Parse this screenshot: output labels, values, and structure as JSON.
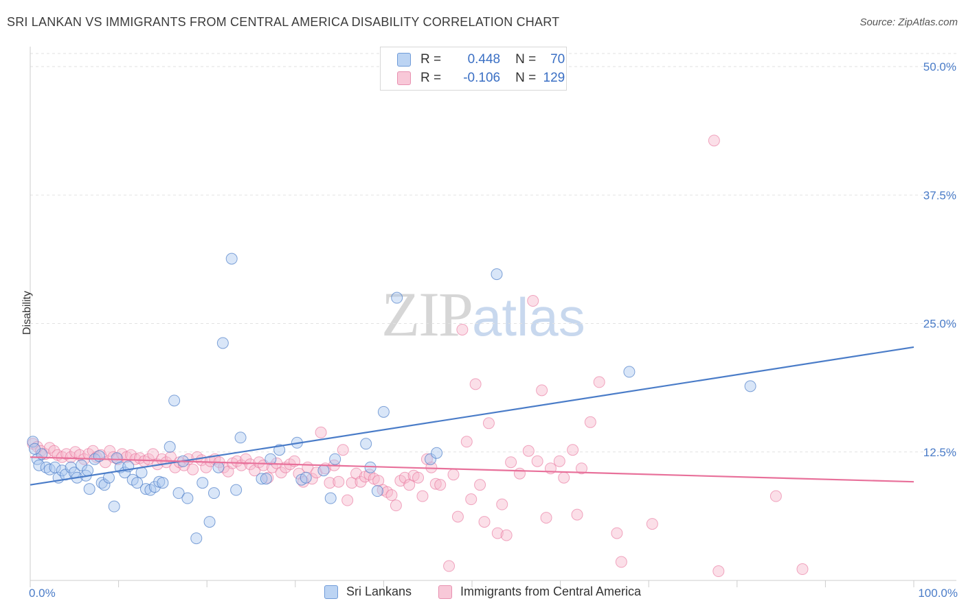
{
  "title": "SRI LANKAN VS IMMIGRANTS FROM CENTRAL AMERICA DISABILITY CORRELATION CHART",
  "source": "Source: ZipAtlas.com",
  "watermark": {
    "zip": "ZIP",
    "atlas": "atlas"
  },
  "stats": {
    "r_label": "R =",
    "n_label": "N =",
    "series1": {
      "r": "0.448",
      "n": "70"
    },
    "series2": {
      "r": "-0.106",
      "n": "129"
    }
  },
  "colors": {
    "blue": "#4a7cc8",
    "blue_fill": "#aac8f0",
    "pink": "#e8709a",
    "pink_fill": "#f6b8cc",
    "grid": "#e2e2e2",
    "axis": "#cccccc"
  },
  "chart_data": {
    "type": "scatter",
    "ylabel": "Disability",
    "xlim": [
      0,
      100
    ],
    "ylim": [
      0,
      50
    ],
    "x_tick_labels": [
      "0.0%",
      "100.0%"
    ],
    "y_ticks": [
      {
        "value": 12.5,
        "label": "12.5%"
      },
      {
        "value": 25.0,
        "label": "25.0%"
      },
      {
        "value": 37.5,
        "label": "37.5%"
      },
      {
        "value": 50.0,
        "label": "50.0%"
      }
    ],
    "legend": [
      "Sri Lankans",
      "Immigrants from Central America"
    ],
    "series": [
      {
        "name": "Sri Lankans",
        "color": "#4a7cc8",
        "trend": {
          "x0": 0,
          "y0": 9.3,
          "x1": 100,
          "y1": 22.7
        },
        "points": [
          [
            0.3,
            13.5
          ],
          [
            0.8,
            11.8
          ],
          [
            1.0,
            11.2
          ],
          [
            1.3,
            12.3
          ],
          [
            1.8,
            11.0
          ],
          [
            2.2,
            10.8
          ],
          [
            2.8,
            11.0
          ],
          [
            3.2,
            10.0
          ],
          [
            3.6,
            10.7
          ],
          [
            4.0,
            10.3
          ],
          [
            4.6,
            11.0
          ],
          [
            5.0,
            10.5
          ],
          [
            5.3,
            10.0
          ],
          [
            5.8,
            11.2
          ],
          [
            6.3,
            10.2
          ],
          [
            6.5,
            10.7
          ],
          [
            6.7,
            8.9
          ],
          [
            7.3,
            11.8
          ],
          [
            7.8,
            12.1
          ],
          [
            8.1,
            9.5
          ],
          [
            8.4,
            9.3
          ],
          [
            8.9,
            10.0
          ],
          [
            9.5,
            7.2
          ],
          [
            9.8,
            11.9
          ],
          [
            10.2,
            11.0
          ],
          [
            10.7,
            10.5
          ],
          [
            11.1,
            11.1
          ],
          [
            11.6,
            9.8
          ],
          [
            12.1,
            9.5
          ],
          [
            12.6,
            10.5
          ],
          [
            13.1,
            8.9
          ],
          [
            13.6,
            8.8
          ],
          [
            14.1,
            9.1
          ],
          [
            14.6,
            9.6
          ],
          [
            15.0,
            9.5
          ],
          [
            15.8,
            13.0
          ],
          [
            16.3,
            17.5
          ],
          [
            16.8,
            8.5
          ],
          [
            17.3,
            11.6
          ],
          [
            17.8,
            8.0
          ],
          [
            18.8,
            4.1
          ],
          [
            19.5,
            9.5
          ],
          [
            20.3,
            5.7
          ],
          [
            20.8,
            8.5
          ],
          [
            21.3,
            11.0
          ],
          [
            21.8,
            23.1
          ],
          [
            22.8,
            31.3
          ],
          [
            23.3,
            8.8
          ],
          [
            23.8,
            13.9
          ],
          [
            26.2,
            9.9
          ],
          [
            26.7,
            9.9
          ],
          [
            27.2,
            11.8
          ],
          [
            28.2,
            12.7
          ],
          [
            30.2,
            13.4
          ],
          [
            30.7,
            9.8
          ],
          [
            31.2,
            10.0
          ],
          [
            33.2,
            10.7
          ],
          [
            34.0,
            8.0
          ],
          [
            34.5,
            11.8
          ],
          [
            38.0,
            13.3
          ],
          [
            38.5,
            11.0
          ],
          [
            39.3,
            8.7
          ],
          [
            40.0,
            16.4
          ],
          [
            41.5,
            27.5
          ],
          [
            45.3,
            11.8
          ],
          [
            46.0,
            12.4
          ],
          [
            52.8,
            29.8
          ],
          [
            67.8,
            20.3
          ],
          [
            81.5,
            18.9
          ],
          [
            0.5,
            12.8
          ]
        ]
      },
      {
        "name": "Immigrants from Central America",
        "color": "#e8709a",
        "trend": {
          "x0": 0,
          "y0": 12.0,
          "x1": 100,
          "y1": 9.6
        },
        "points": [
          [
            0.3,
            13.3
          ],
          [
            0.8,
            13.0
          ],
          [
            1.2,
            12.6
          ],
          [
            1.7,
            12.3
          ],
          [
            2.2,
            12.9
          ],
          [
            2.7,
            12.6
          ],
          [
            3.1,
            12.2
          ],
          [
            3.6,
            12.0
          ],
          [
            4.1,
            12.3
          ],
          [
            4.6,
            12.0
          ],
          [
            5.1,
            12.5
          ],
          [
            5.6,
            12.2
          ],
          [
            6.1,
            11.8
          ],
          [
            6.6,
            12.3
          ],
          [
            7.1,
            12.6
          ],
          [
            7.5,
            12.0
          ],
          [
            8.0,
            12.2
          ],
          [
            8.5,
            11.5
          ],
          [
            9.0,
            12.6
          ],
          [
            9.4,
            12.0
          ],
          [
            9.9,
            11.8
          ],
          [
            10.4,
            12.3
          ],
          [
            10.9,
            12.0
          ],
          [
            11.4,
            12.2
          ],
          [
            11.9,
            11.8
          ],
          [
            12.4,
            11.9
          ],
          [
            12.9,
            11.6
          ],
          [
            13.4,
            11.8
          ],
          [
            13.9,
            12.3
          ],
          [
            14.4,
            11.3
          ],
          [
            14.9,
            11.8
          ],
          [
            15.4,
            11.5
          ],
          [
            15.9,
            12.0
          ],
          [
            16.4,
            11.0
          ],
          [
            16.9,
            11.5
          ],
          [
            17.4,
            11.2
          ],
          [
            17.9,
            11.8
          ],
          [
            18.4,
            10.8
          ],
          [
            18.9,
            12.0
          ],
          [
            19.4,
            11.7
          ],
          [
            19.9,
            11.0
          ],
          [
            20.4,
            11.6
          ],
          [
            20.9,
            11.8
          ],
          [
            21.4,
            11.5
          ],
          [
            21.9,
            11.0
          ],
          [
            22.4,
            10.6
          ],
          [
            22.9,
            11.4
          ],
          [
            23.4,
            11.6
          ],
          [
            23.9,
            11.2
          ],
          [
            24.4,
            11.8
          ],
          [
            24.9,
            11.3
          ],
          [
            25.4,
            10.7
          ],
          [
            25.9,
            11.5
          ],
          [
            26.4,
            11.2
          ],
          [
            26.9,
            10.0
          ],
          [
            27.4,
            11.0
          ],
          [
            27.9,
            11.4
          ],
          [
            28.4,
            10.5
          ],
          [
            28.9,
            11.0
          ],
          [
            29.4,
            11.3
          ],
          [
            29.9,
            11.6
          ],
          [
            30.4,
            10.4
          ],
          [
            30.9,
            9.6
          ],
          [
            31.4,
            11.0
          ],
          [
            31.9,
            9.9
          ],
          [
            32.4,
            10.5
          ],
          [
            32.9,
            14.4
          ],
          [
            33.4,
            10.9
          ],
          [
            33.9,
            9.5
          ],
          [
            34.4,
            11.2
          ],
          [
            34.9,
            9.6
          ],
          [
            35.4,
            12.7
          ],
          [
            35.9,
            7.8
          ],
          [
            36.4,
            9.5
          ],
          [
            36.9,
            10.4
          ],
          [
            37.4,
            9.6
          ],
          [
            37.9,
            10.1
          ],
          [
            38.4,
            10.3
          ],
          [
            38.9,
            9.9
          ],
          [
            39.4,
            9.7
          ],
          [
            39.9,
            8.8
          ],
          [
            40.4,
            8.6
          ],
          [
            40.9,
            8.3
          ],
          [
            41.4,
            7.3
          ],
          [
            41.9,
            9.7
          ],
          [
            42.4,
            10.0
          ],
          [
            42.9,
            9.3
          ],
          [
            43.4,
            10.2
          ],
          [
            43.9,
            10.0
          ],
          [
            44.4,
            8.2
          ],
          [
            44.9,
            11.8
          ],
          [
            45.4,
            11.0
          ],
          [
            45.9,
            9.4
          ],
          [
            46.4,
            9.3
          ],
          [
            47.4,
            1.4
          ],
          [
            47.9,
            10.3
          ],
          [
            48.4,
            6.2
          ],
          [
            48.9,
            24.4
          ],
          [
            49.4,
            13.5
          ],
          [
            49.9,
            7.9
          ],
          [
            50.4,
            19.1
          ],
          [
            50.9,
            9.3
          ],
          [
            51.4,
            5.7
          ],
          [
            51.9,
            15.3
          ],
          [
            52.9,
            4.6
          ],
          [
            53.4,
            7.4
          ],
          [
            53.9,
            4.4
          ],
          [
            54.4,
            11.5
          ],
          [
            55.4,
            10.4
          ],
          [
            56.4,
            12.6
          ],
          [
            56.9,
            27.2
          ],
          [
            57.4,
            11.6
          ],
          [
            57.9,
            18.5
          ],
          [
            58.4,
            6.1
          ],
          [
            58.9,
            10.9
          ],
          [
            59.9,
            11.6
          ],
          [
            60.4,
            10.0
          ],
          [
            61.4,
            12.7
          ],
          [
            61.9,
            6.4
          ],
          [
            62.4,
            10.9
          ],
          [
            63.4,
            15.4
          ],
          [
            64.4,
            19.3
          ],
          [
            66.4,
            4.6
          ],
          [
            66.9,
            1.8
          ],
          [
            70.4,
            5.5
          ],
          [
            77.4,
            42.8
          ],
          [
            77.9,
            0.9
          ],
          [
            84.4,
            8.2
          ],
          [
            87.4,
            1.1
          ]
        ]
      }
    ]
  }
}
